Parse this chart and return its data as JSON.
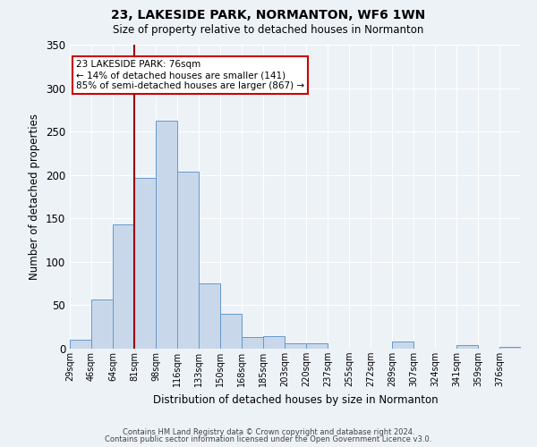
{
  "title": "23, LAKESIDE PARK, NORMANTON, WF6 1WN",
  "subtitle": "Size of property relative to detached houses in Normanton",
  "xlabel": "Distribution of detached houses by size in Normanton",
  "ylabel": "Number of detached properties",
  "bin_labels": [
    "29sqm",
    "46sqm",
    "64sqm",
    "81sqm",
    "98sqm",
    "116sqm",
    "133sqm",
    "150sqm",
    "168sqm",
    "185sqm",
    "203sqm",
    "220sqm",
    "237sqm",
    "255sqm",
    "272sqm",
    "289sqm",
    "307sqm",
    "324sqm",
    "341sqm",
    "359sqm",
    "376sqm"
  ],
  "bar_heights": [
    10,
    57,
    143,
    197,
    262,
    204,
    75,
    40,
    13,
    14,
    6,
    6,
    0,
    0,
    0,
    8,
    0,
    0,
    4,
    0,
    2
  ],
  "bar_color": "#c8d8ea",
  "bar_edge_color": "#6699cc",
  "vline_x_idx": 3,
  "vline_color": "#990000",
  "ylim": [
    0,
    350
  ],
  "yticks": [
    0,
    50,
    100,
    150,
    200,
    250,
    300,
    350
  ],
  "annotation_title": "23 LAKESIDE PARK: 76sqm",
  "annotation_line1": "← 14% of detached houses are smaller (141)",
  "annotation_line2": "85% of semi-detached houses are larger (867) →",
  "annotation_box_color": "#ffffff",
  "annotation_box_edge": "#cc0000",
  "footer1": "Contains HM Land Registry data © Crown copyright and database right 2024.",
  "footer2": "Contains public sector information licensed under the Open Government Licence v3.0.",
  "background_color": "#edf2f7",
  "grid_color": "#ffffff",
  "fig_width": 6.0,
  "fig_height": 5.0,
  "dpi": 100
}
